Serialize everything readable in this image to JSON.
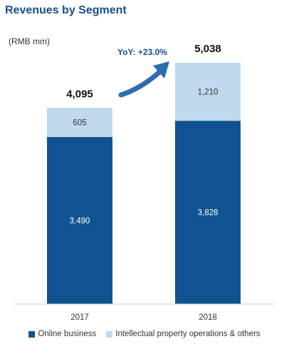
{
  "colors": {
    "title": "#1a4e8a",
    "online": "#115391",
    "ip": "#c0d9ee",
    "arrow": "#2e6cb0",
    "axis": "#cccccc",
    "text": "#333333"
  },
  "chart_data": {
    "type": "bar",
    "stacked": true,
    "title": "Revenues by Segment",
    "unit": "(RMB mm)",
    "categories": [
      "2017",
      "2018"
    ],
    "series": [
      {
        "name": "Online business",
        "values": [
          3490,
          3828
        ]
      },
      {
        "name": "Intellectual property operations & others",
        "values": [
          605,
          1210
        ]
      }
    ],
    "totals": [
      4095,
      5038
    ],
    "value_labels": {
      "online": [
        "3,490",
        "3,828"
      ],
      "ip": [
        "605",
        "1,210"
      ],
      "totals": [
        "4,095",
        "5,038"
      ]
    },
    "ylim": [
      0,
      5038
    ],
    "annotation": "YoY: +23.0%",
    "grid": false,
    "legend_position": "bottom"
  }
}
